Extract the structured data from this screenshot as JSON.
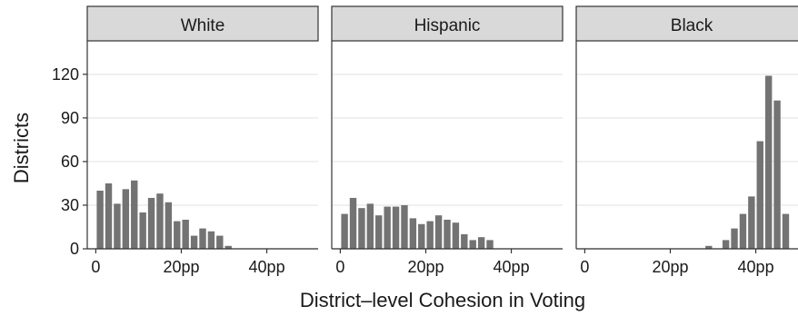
{
  "chart_data": {
    "type": "bar",
    "xlabel": "District–level Cohesion in Voting",
    "ylabel": "Districts",
    "ylim": [
      0,
      143
    ],
    "yticks": [
      0,
      30,
      60,
      90,
      120
    ],
    "xticks": [
      {
        "value": 0,
        "label": "0"
      },
      {
        "value": 20,
        "label": "20pp"
      },
      {
        "value": 40,
        "label": "40pp"
      }
    ],
    "xlim": [
      -2,
      52
    ],
    "bin_width": 2,
    "grid": true,
    "colors": {
      "bar": "#737373",
      "strip": "#d9d9d9",
      "grid": "#ebebeb",
      "axis": "#333333"
    },
    "panels": [
      {
        "name": "White",
        "bins": [
          1,
          3,
          5,
          7,
          9,
          11,
          13,
          15,
          17,
          19,
          21,
          23,
          25,
          27,
          29,
          31,
          33,
          35,
          37,
          39
        ],
        "values": [
          40,
          45,
          31,
          41,
          47,
          25,
          35,
          38,
          32,
          19,
          20,
          9,
          14,
          12,
          9,
          2,
          0,
          0,
          0,
          0
        ]
      },
      {
        "name": "Hispanic",
        "bins": [
          1,
          3,
          5,
          7,
          9,
          11,
          13,
          15,
          17,
          19,
          21,
          23,
          25,
          27,
          29,
          31,
          33,
          35,
          37,
          39
        ],
        "values": [
          24,
          35,
          28,
          31,
          23,
          29,
          29,
          30,
          21,
          17,
          19,
          23,
          20,
          18,
          10,
          6,
          8,
          6,
          0,
          0
        ]
      },
      {
        "name": "Black",
        "bins": [
          1,
          3,
          5,
          7,
          9,
          11,
          13,
          15,
          17,
          19,
          21,
          23,
          25,
          27,
          29,
          31,
          33,
          35,
          37,
          39,
          41,
          43,
          45,
          47,
          49
        ],
        "values": [
          0,
          0,
          0,
          0,
          0,
          0,
          0,
          0,
          0,
          0,
          0,
          0,
          0,
          0,
          2,
          0,
          6,
          14,
          24,
          36,
          74,
          119,
          102,
          24,
          0
        ]
      }
    ]
  }
}
